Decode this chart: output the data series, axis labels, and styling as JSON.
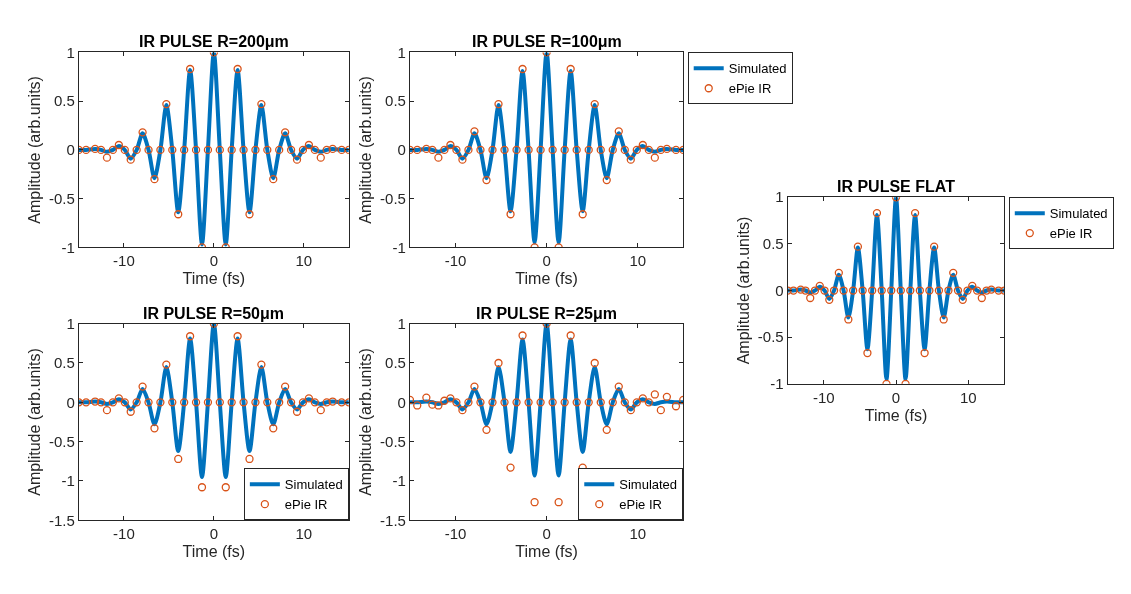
{
  "chart_data": [
    {
      "type": "line",
      "title": "IR PULSE R=200μm",
      "xlabel": "Time (fs)",
      "ylabel": "Amplitude (arb.units)",
      "xlim": [
        -15,
        15
      ],
      "xticks": [
        -10,
        0,
        10
      ],
      "ylim": [
        -1,
        1
      ],
      "yticks": [
        -1,
        -0.5,
        0,
        0.5,
        1
      ],
      "legend": false,
      "x": [
        -15,
        -14.2,
        -13.2,
        -12.54,
        -11.88,
        -11.22,
        -10.56,
        -9.9,
        -9.24,
        -8.58,
        -7.92,
        -7.26,
        -6.6,
        -5.94,
        -5.28,
        -4.62,
        -3.96,
        -3.3,
        -2.64,
        -1.98,
        -1.32,
        -0.66,
        0,
        0.66,
        1.32,
        1.98,
        2.64,
        3.3,
        3.96,
        4.62,
        5.28,
        5.94,
        6.6,
        7.26,
        7.92,
        8.58,
        9.24,
        9.9,
        10.56,
        11.22,
        11.88,
        12.54,
        13.2,
        14.2,
        15
      ],
      "series": [
        {
          "type": "scatter",
          "marker": "circle",
          "color": "#d95319",
          "values": [
            0,
            0,
            0.01,
            0,
            -0.08,
            0,
            0.05,
            0,
            -0.1,
            0,
            0.18,
            0,
            -0.3,
            0,
            0.47,
            0,
            -0.66,
            0,
            0.83,
            0,
            -1,
            0,
            1,
            0,
            -1,
            0,
            0.83,
            0,
            -0.66,
            0,
            0.47,
            0,
            -0.3,
            0,
            0.18,
            0,
            -0.1,
            0,
            0.05,
            0,
            -0.08,
            0,
            0.01,
            0,
            0
          ]
        },
        {
          "color": "#0072bd",
          "values": [
            0,
            0,
            0.01,
            0,
            -0.02,
            0,
            0.04,
            0,
            -0.09,
            0,
            0.17,
            0,
            -0.29,
            0,
            0.46,
            0,
            -0.64,
            0,
            0.82,
            0,
            -0.97,
            0,
            1,
            0,
            -0.97,
            0,
            0.82,
            0,
            -0.64,
            0,
            0.46,
            0,
            -0.29,
            0,
            0.17,
            0,
            -0.09,
            0,
            0.04,
            0,
            -0.02,
            0,
            0.01,
            0,
            0
          ]
        }
      ]
    },
    {
      "type": "line",
      "title": "IR PULSE R=100μm",
      "xlabel": "Time (fs)",
      "ylabel": "Amplitude (arb.units)",
      "xlim": [
        -15,
        15
      ],
      "xticks": [
        -10,
        0,
        10
      ],
      "ylim": [
        -1,
        1
      ],
      "yticks": [
        -1,
        -0.5,
        0,
        0.5,
        1
      ],
      "legend": "top right",
      "x": [
        -15,
        -14.2,
        -13.2,
        -12.54,
        -11.88,
        -11.22,
        -10.56,
        -9.9,
        -9.24,
        -8.58,
        -7.92,
        -7.26,
        -6.6,
        -5.94,
        -5.28,
        -4.62,
        -3.96,
        -3.3,
        -2.64,
        -1.98,
        -1.32,
        -0.66,
        0,
        0.66,
        1.32,
        1.98,
        2.64,
        3.3,
        3.96,
        4.62,
        5.28,
        5.94,
        6.6,
        7.26,
        7.92,
        8.58,
        9.24,
        9.9,
        10.56,
        11.22,
        11.88,
        12.54,
        13.2,
        14.2,
        15
      ],
      "series": [
        {
          "name": "ePie IR",
          "type": "scatter",
          "marker": "circle",
          "color": "#d95319",
          "values": [
            0,
            0,
            0.01,
            0,
            -0.08,
            0,
            0.05,
            0,
            -0.1,
            0,
            0.19,
            0,
            -0.31,
            0,
            0.47,
            0,
            -0.66,
            0,
            0.83,
            0,
            -1,
            0,
            1,
            0,
            -1,
            0,
            0.83,
            0,
            -0.66,
            0,
            0.47,
            0,
            -0.31,
            0,
            0.19,
            0,
            -0.1,
            0,
            0.05,
            0,
            -0.08,
            0,
            0.01,
            0,
            0
          ]
        },
        {
          "name": "Simulated",
          "color": "#0072bd",
          "values": [
            0,
            0,
            0.01,
            0,
            -0.02,
            0,
            0.04,
            0,
            -0.09,
            0,
            0.17,
            0,
            -0.29,
            0,
            0.46,
            0,
            -0.63,
            0,
            0.81,
            0,
            -0.95,
            0,
            1,
            0,
            -0.95,
            0,
            0.81,
            0,
            -0.63,
            0,
            0.46,
            0,
            -0.29,
            0,
            0.17,
            0,
            -0.09,
            0,
            0.04,
            0,
            -0.02,
            0,
            0.01,
            0,
            0
          ]
        }
      ]
    },
    {
      "type": "line",
      "title": "IR PULSE R=50μm",
      "xlabel": "Time (fs)",
      "ylabel": "Amplitude (arb.units)",
      "xlim": [
        -15,
        15
      ],
      "xticks": [
        -10,
        0,
        10
      ],
      "ylim": [
        -1.5,
        1
      ],
      "yticks": [
        -1.5,
        -1,
        -0.5,
        0,
        0.5,
        1
      ],
      "legend": "bottom right",
      "x": [
        -15,
        -14.2,
        -13.2,
        -12.54,
        -11.88,
        -11.22,
        -10.56,
        -9.9,
        -9.24,
        -8.58,
        -7.92,
        -7.26,
        -6.6,
        -5.94,
        -5.28,
        -4.62,
        -3.96,
        -3.3,
        -2.64,
        -1.98,
        -1.32,
        -0.66,
        0,
        0.66,
        1.32,
        1.98,
        2.64,
        3.3,
        3.96,
        4.62,
        5.28,
        5.94,
        6.6,
        7.26,
        7.92,
        8.58,
        9.24,
        9.9,
        10.56,
        11.22,
        11.88,
        12.54,
        13.2,
        14.2,
        15
      ],
      "series": [
        {
          "name": "ePie IR",
          "type": "scatter",
          "marker": "circle",
          "color": "#d95319",
          "values": [
            0,
            0,
            0.01,
            0,
            -0.1,
            0,
            0.05,
            0,
            -0.12,
            0,
            0.2,
            0,
            -0.33,
            0,
            0.48,
            0,
            -0.72,
            0,
            0.84,
            0,
            -1.08,
            0,
            1,
            0,
            -1.08,
            0,
            0.84,
            0,
            -0.72,
            0,
            0.48,
            0,
            -0.33,
            0,
            0.2,
            0,
            -0.12,
            0,
            0.05,
            0,
            -0.1,
            0,
            0.01,
            0,
            0
          ]
        },
        {
          "name": "Simulated",
          "color": "#0072bd",
          "values": [
            0,
            0,
            0.01,
            0,
            -0.02,
            0,
            0.04,
            0,
            -0.09,
            0,
            0.17,
            0,
            -0.28,
            0,
            0.45,
            0,
            -0.62,
            0,
            0.81,
            0,
            -0.95,
            0,
            1,
            0,
            -0.95,
            0,
            0.81,
            0,
            -0.62,
            0,
            0.45,
            0,
            -0.28,
            0,
            0.17,
            0,
            -0.09,
            0,
            0.04,
            0,
            -0.02,
            0,
            0.01,
            0,
            0
          ]
        }
      ]
    },
    {
      "type": "line",
      "title": "IR PULSE R=25μm",
      "xlabel": "Time (fs)",
      "ylabel": "Amplitude (arb.units)",
      "xlim": [
        -15,
        15
      ],
      "xticks": [
        -10,
        0,
        10
      ],
      "ylim": [
        -1.5,
        1
      ],
      "yticks": [
        -1.5,
        -1,
        -0.5,
        0,
        0.5,
        1
      ],
      "legend": "bottom right",
      "x": [
        -15,
        -14.2,
        -13.2,
        -12.54,
        -11.88,
        -11.22,
        -10.56,
        -9.9,
        -9.24,
        -8.58,
        -7.92,
        -7.26,
        -6.6,
        -5.94,
        -5.28,
        -4.62,
        -3.96,
        -3.3,
        -2.64,
        -1.98,
        -1.32,
        -0.66,
        0,
        0.66,
        1.32,
        1.98,
        2.64,
        3.3,
        3.96,
        4.62,
        5.28,
        5.94,
        6.6,
        7.26,
        7.92,
        8.58,
        9.24,
        9.9,
        10.56,
        11.22,
        11.88,
        12.54,
        13.2,
        14.2,
        15
      ],
      "series": [
        {
          "name": "ePie IR",
          "type": "scatter",
          "marker": "circle",
          "color": "#d95319",
          "values": [
            0.03,
            -0.04,
            0.06,
            -0.03,
            -0.04,
            0.02,
            0.05,
            0,
            -0.1,
            0,
            0.2,
            0,
            -0.35,
            0,
            0.5,
            0,
            -0.83,
            0,
            0.85,
            0,
            -1.27,
            0,
            1,
            0,
            -1.27,
            0,
            0.85,
            0,
            -0.83,
            0,
            0.5,
            0,
            -0.35,
            0,
            0.2,
            0,
            -0.1,
            0,
            0.05,
            0,
            0.1,
            -0.1,
            0.07,
            -0.05,
            0.03
          ]
        },
        {
          "name": "Simulated",
          "color": "#0072bd",
          "values": [
            0,
            0,
            0.01,
            0,
            -0.02,
            0,
            0.04,
            0,
            -0.09,
            0,
            0.17,
            0,
            -0.28,
            0,
            0.45,
            0,
            -0.63,
            0,
            0.8,
            0,
            -0.93,
            0,
            1,
            0,
            -0.93,
            0,
            0.8,
            0,
            -0.63,
            0,
            0.45,
            0,
            -0.28,
            0,
            0.17,
            0,
            -0.09,
            0,
            0.04,
            0,
            -0.02,
            0,
            0.01,
            0,
            0
          ]
        }
      ]
    },
    {
      "type": "line",
      "title": "IR PULSE FLAT",
      "xlabel": "Time (fs)",
      "ylabel": "Amplitude (arb.units)",
      "xlim": [
        -15,
        15
      ],
      "xticks": [
        -10,
        0,
        10
      ],
      "ylim": [
        -1,
        1
      ],
      "yticks": [
        -1,
        -0.5,
        0,
        0.5,
        1
      ],
      "legend": "top right",
      "x": [
        -15,
        -14.2,
        -13.2,
        -12.54,
        -11.88,
        -11.22,
        -10.56,
        -9.9,
        -9.24,
        -8.58,
        -7.92,
        -7.26,
        -6.6,
        -5.94,
        -5.28,
        -4.62,
        -3.96,
        -3.3,
        -2.64,
        -1.98,
        -1.32,
        -0.66,
        0,
        0.66,
        1.32,
        1.98,
        2.64,
        3.3,
        3.96,
        4.62,
        5.28,
        5.94,
        6.6,
        7.26,
        7.92,
        8.58,
        9.24,
        9.9,
        10.56,
        11.22,
        11.88,
        12.54,
        13.2,
        14.2,
        15
      ],
      "series": [
        {
          "name": "ePie IR",
          "type": "scatter",
          "marker": "circle",
          "color": "#d95319",
          "values": [
            0,
            0,
            0.01,
            0,
            -0.08,
            0,
            0.05,
            0,
            -0.1,
            0,
            0.19,
            0,
            -0.31,
            0,
            0.47,
            0,
            -0.67,
            0,
            0.83,
            0,
            -1,
            0,
            1,
            0,
            -1,
            0,
            0.83,
            0,
            -0.67,
            0,
            0.47,
            0,
            -0.31,
            0,
            0.19,
            0,
            -0.1,
            0,
            0.05,
            0,
            -0.08,
            0,
            0.01,
            0,
            0
          ]
        },
        {
          "name": "Simulated",
          "color": "#0072bd",
          "values": [
            0,
            0,
            0.01,
            0,
            -0.02,
            0,
            0.04,
            0,
            -0.09,
            0,
            0.17,
            0,
            -0.29,
            0,
            0.46,
            0,
            -0.63,
            0,
            0.81,
            0,
            -0.95,
            0,
            1,
            0,
            -0.95,
            0,
            0.81,
            0,
            -0.63,
            0,
            0.46,
            0,
            -0.29,
            0,
            0.17,
            0,
            -0.09,
            0,
            0.04,
            0,
            -0.02,
            0,
            0.01,
            0,
            0
          ]
        }
      ]
    }
  ]
}
